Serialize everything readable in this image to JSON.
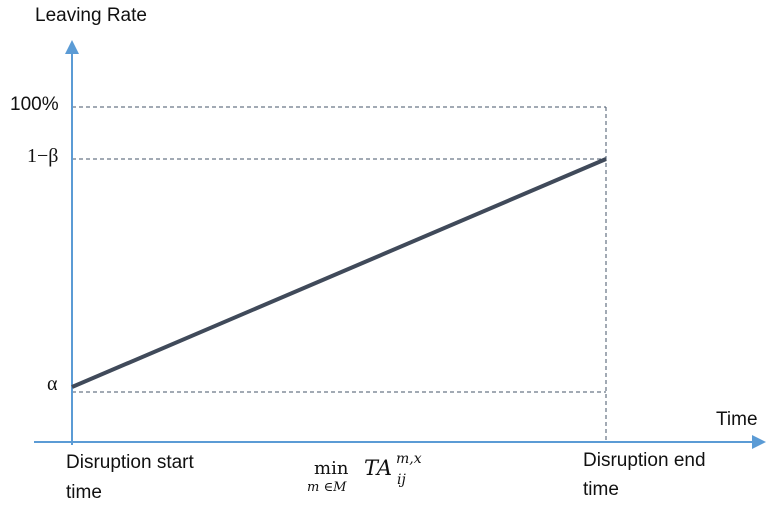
{
  "chart_data": {
    "type": "line",
    "ylabel": "Leaving Rate",
    "xlabel": "Time",
    "ytick_labels": [
      "100%",
      "1−β",
      "α"
    ],
    "xtick_labels": {
      "start": [
        "Disruption start",
        "time"
      ],
      "end": [
        "Disruption end",
        "time"
      ]
    },
    "x_annotation": {
      "op": "min",
      "op_sub": "m ∈M",
      "term": "TA",
      "sup": "m,x",
      "sub": "ij"
    },
    "series": [
      {
        "points": [
          {
            "x": "Disruption start time",
            "y": "α"
          },
          {
            "x": "Disruption end time",
            "y": "1−β"
          }
        ]
      }
    ],
    "grid": false,
    "legend": "none"
  },
  "colors": {
    "axis": "#5b9bd5",
    "line": "#404a5a",
    "guide": "#44546a",
    "text": "#111111"
  }
}
